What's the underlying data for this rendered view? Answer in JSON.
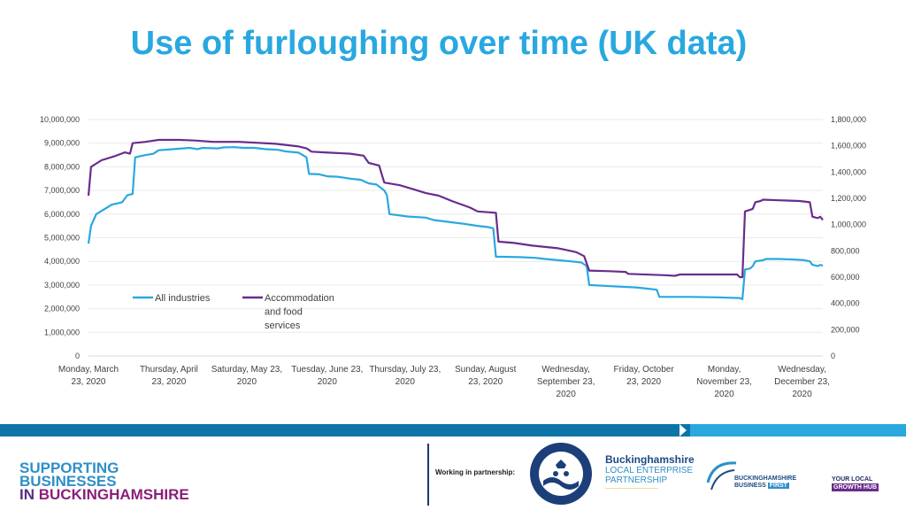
{
  "title": "Use of furloughing over time (UK data)",
  "colors": {
    "title": "#29a8e0",
    "all_industries": "#29a8e0",
    "accommodation": "#6a2c8c",
    "band_dark": "#0d74a8",
    "band_light": "#29a8e0"
  },
  "chart_data": {
    "type": "line",
    "title": "",
    "left_axis": {
      "ticks": [
        "0",
        "1,000,000",
        "2,000,000",
        "3,000,000",
        "4,000,000",
        "5,000,000",
        "6,000,000",
        "7,000,000",
        "8,000,000",
        "9,000,000",
        "10,000,000"
      ],
      "range": [
        0,
        10000000
      ]
    },
    "right_axis": {
      "ticks": [
        "0",
        "200,000",
        "400,000",
        "600,000",
        "800,000",
        "1,000,000",
        "1,200,000",
        "1,400,000",
        "1,600,000",
        "1,800,000"
      ],
      "range": [
        0,
        1800000
      ]
    },
    "x_axis": {
      "range": [
        "2020-03-23",
        "2020-12-31"
      ],
      "tick_labels": [
        [
          "Monday, March",
          "23, 2020"
        ],
        [
          "Thursday, April",
          "23, 2020"
        ],
        [
          "Saturday, May 23,",
          "2020"
        ],
        [
          "Tuesday, June 23,",
          "2020"
        ],
        [
          "Thursday, July 23,",
          "2020"
        ],
        [
          "Sunday, August",
          "23, 2020"
        ],
        [
          "Wednesday,",
          "September 23,",
          "2020"
        ],
        [
          "Friday, October",
          "23, 2020"
        ],
        [
          "Monday,",
          "November 23,",
          "2020"
        ],
        [
          "Wednesday,",
          "December 23,",
          "2020"
        ]
      ],
      "tick_dates": [
        "2020-03-23",
        "2020-04-23",
        "2020-05-23",
        "2020-06-23",
        "2020-07-23",
        "2020-08-23",
        "2020-09-23",
        "2020-10-23",
        "2020-11-23",
        "2020-12-23"
      ]
    },
    "grid": true,
    "legend_position": "lower-left inside plot",
    "series": [
      {
        "name": "All industries",
        "axis": "left",
        "color": "#29a8e0",
        "points": [
          [
            "2020-03-23",
            4750000
          ],
          [
            "2020-03-24",
            5500000
          ],
          [
            "2020-03-26",
            6000000
          ],
          [
            "2020-03-29",
            6200000
          ],
          [
            "2020-04-01",
            6400000
          ],
          [
            "2020-04-05",
            6500000
          ],
          [
            "2020-04-07",
            6800000
          ],
          [
            "2020-04-09",
            6850000
          ],
          [
            "2020-04-10",
            8400000
          ],
          [
            "2020-04-14",
            8500000
          ],
          [
            "2020-04-17",
            8550000
          ],
          [
            "2020-04-19",
            8700000
          ],
          [
            "2020-04-25",
            8750000
          ],
          [
            "2020-05-01",
            8800000
          ],
          [
            "2020-05-04",
            8750000
          ],
          [
            "2020-05-06",
            8800000
          ],
          [
            "2020-05-12",
            8780000
          ],
          [
            "2020-05-14",
            8820000
          ],
          [
            "2020-05-18",
            8830000
          ],
          [
            "2020-05-22",
            8800000
          ],
          [
            "2020-05-26",
            8800000
          ],
          [
            "2020-05-30",
            8750000
          ],
          [
            "2020-06-04",
            8720000
          ],
          [
            "2020-06-07",
            8650000
          ],
          [
            "2020-06-12",
            8600000
          ],
          [
            "2020-06-15",
            8400000
          ],
          [
            "2020-06-16",
            7700000
          ],
          [
            "2020-06-20",
            7680000
          ],
          [
            "2020-06-23",
            7600000
          ],
          [
            "2020-06-27",
            7580000
          ],
          [
            "2020-07-02",
            7500000
          ],
          [
            "2020-07-06",
            7450000
          ],
          [
            "2020-07-09",
            7300000
          ],
          [
            "2020-07-12",
            7250000
          ],
          [
            "2020-07-15",
            7000000
          ],
          [
            "2020-07-16",
            6800000
          ],
          [
            "2020-07-17",
            6000000
          ],
          [
            "2020-07-24",
            5900000
          ],
          [
            "2020-07-31",
            5850000
          ],
          [
            "2020-08-03",
            5750000
          ],
          [
            "2020-08-10",
            5650000
          ],
          [
            "2020-08-14",
            5600000
          ],
          [
            "2020-08-20",
            5500000
          ],
          [
            "2020-08-24",
            5450000
          ],
          [
            "2020-08-26",
            5400000
          ],
          [
            "2020-08-27",
            4200000
          ],
          [
            "2020-09-05",
            4180000
          ],
          [
            "2020-09-11",
            4150000
          ],
          [
            "2020-09-15",
            4100000
          ],
          [
            "2020-09-20",
            4050000
          ],
          [
            "2020-09-25",
            4000000
          ],
          [
            "2020-09-29",
            3950000
          ],
          [
            "2020-10-01",
            3800000
          ],
          [
            "2020-10-02",
            3000000
          ],
          [
            "2020-10-10",
            2950000
          ],
          [
            "2020-10-20",
            2900000
          ],
          [
            "2020-10-24",
            2850000
          ],
          [
            "2020-10-28",
            2800000
          ],
          [
            "2020-10-29",
            2500000
          ],
          [
            "2020-11-10",
            2500000
          ],
          [
            "2020-11-20",
            2480000
          ],
          [
            "2020-11-29",
            2450000
          ],
          [
            "2020-11-30",
            2400000
          ],
          [
            "2020-12-01",
            3650000
          ],
          [
            "2020-12-03",
            3700000
          ],
          [
            "2020-12-04",
            3800000
          ],
          [
            "2020-12-05",
            4000000
          ],
          [
            "2020-12-08",
            4050000
          ],
          [
            "2020-12-09",
            4100000
          ],
          [
            "2020-12-14",
            4100000
          ],
          [
            "2020-12-20",
            4080000
          ],
          [
            "2020-12-24",
            4050000
          ],
          [
            "2020-12-26",
            4000000
          ],
          [
            "2020-12-27",
            3850000
          ],
          [
            "2020-12-28",
            3830000
          ],
          [
            "2020-12-29",
            3800000
          ],
          [
            "2020-12-30",
            3850000
          ],
          [
            "2020-12-31",
            3820000
          ]
        ]
      },
      {
        "name": "Accommodation and food services",
        "axis": "right",
        "color": "#6a2c8c",
        "points": [
          [
            "2020-03-23",
            1220000
          ],
          [
            "2020-03-24",
            1440000
          ],
          [
            "2020-03-28",
            1490000
          ],
          [
            "2020-04-02",
            1520000
          ],
          [
            "2020-04-06",
            1550000
          ],
          [
            "2020-04-08",
            1540000
          ],
          [
            "2020-04-09",
            1620000
          ],
          [
            "2020-04-14",
            1630000
          ],
          [
            "2020-04-19",
            1645000
          ],
          [
            "2020-04-27",
            1645000
          ],
          [
            "2020-05-03",
            1640000
          ],
          [
            "2020-05-10",
            1630000
          ],
          [
            "2020-05-20",
            1630000
          ],
          [
            "2020-06-03",
            1615000
          ],
          [
            "2020-06-12",
            1595000
          ],
          [
            "2020-06-15",
            1580000
          ],
          [
            "2020-06-17",
            1555000
          ],
          [
            "2020-06-22",
            1550000
          ],
          [
            "2020-07-02",
            1540000
          ],
          [
            "2020-07-07",
            1525000
          ],
          [
            "2020-07-09",
            1470000
          ],
          [
            "2020-07-13",
            1450000
          ],
          [
            "2020-07-15",
            1320000
          ],
          [
            "2020-07-21",
            1300000
          ],
          [
            "2020-07-26",
            1270000
          ],
          [
            "2020-07-31",
            1240000
          ],
          [
            "2020-08-05",
            1220000
          ],
          [
            "2020-08-10",
            1180000
          ],
          [
            "2020-08-17",
            1130000
          ],
          [
            "2020-08-20",
            1100000
          ],
          [
            "2020-08-27",
            1090000
          ],
          [
            "2020-08-28",
            870000
          ],
          [
            "2020-09-03",
            860000
          ],
          [
            "2020-09-10",
            840000
          ],
          [
            "2020-09-20",
            820000
          ],
          [
            "2020-09-27",
            790000
          ],
          [
            "2020-09-30",
            760000
          ],
          [
            "2020-10-02",
            650000
          ],
          [
            "2020-10-10",
            645000
          ],
          [
            "2020-10-16",
            640000
          ],
          [
            "2020-10-17",
            625000
          ],
          [
            "2020-10-31",
            615000
          ],
          [
            "2020-11-04",
            610000
          ],
          [
            "2020-11-06",
            620000
          ],
          [
            "2020-11-20",
            620000
          ],
          [
            "2020-11-28",
            620000
          ],
          [
            "2020-11-29",
            600000
          ],
          [
            "2020-11-30",
            600000
          ],
          [
            "2020-12-01",
            1100000
          ],
          [
            "2020-12-04",
            1120000
          ],
          [
            "2020-12-05",
            1170000
          ],
          [
            "2020-12-07",
            1180000
          ],
          [
            "2020-12-08",
            1190000
          ],
          [
            "2020-12-14",
            1185000
          ],
          [
            "2020-12-22",
            1180000
          ],
          [
            "2020-12-26",
            1170000
          ],
          [
            "2020-12-27",
            1060000
          ],
          [
            "2020-12-28",
            1055000
          ],
          [
            "2020-12-29",
            1050000
          ],
          [
            "2020-12-30",
            1060000
          ],
          [
            "2020-12-31",
            1035000
          ]
        ]
      }
    ]
  },
  "footer": {
    "supporting_line1": "SUPPORTING",
    "supporting_line2": "BUSINESSES",
    "supporting_line3_pre": "IN ",
    "supporting_line3": "BUCKINGHAMSHIRE",
    "partnership": "Working in partnership:",
    "lep_line1": "Buckinghamshire",
    "lep_line2": "LOCAL ENTERPRISE",
    "lep_line3": "PARTNERSHIP",
    "bbf_line1": "BUCKINGHAMSHIRE",
    "bbf_line2a": "BUSINESS ",
    "bbf_line2b": "FIRST",
    "hub_line1": "YOUR LOCAL",
    "hub_line2": "GROWTH HUB"
  }
}
